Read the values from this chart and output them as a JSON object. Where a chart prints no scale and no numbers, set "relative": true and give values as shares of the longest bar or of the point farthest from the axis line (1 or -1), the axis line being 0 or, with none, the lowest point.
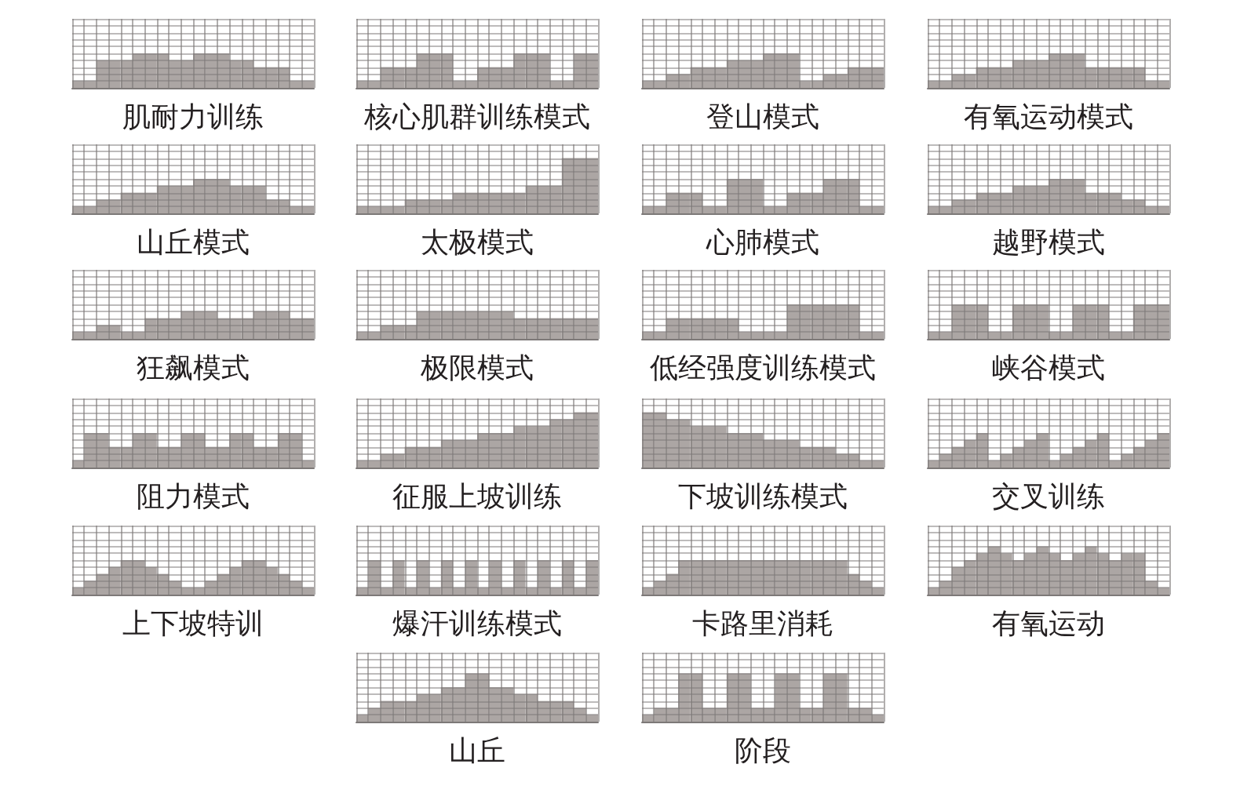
{
  "chart_data": [
    {
      "type": "bar",
      "title": "肌耐力训练",
      "categories": [
        null,
        null,
        null,
        null,
        null,
        null,
        null,
        null,
        null,
        null,
        null,
        null,
        null,
        null,
        null,
        null,
        null,
        null,
        null,
        null
      ],
      "values": [
        0.2,
        0.2,
        0.8,
        0.8,
        0.8,
        1,
        1,
        1,
        0.8,
        0.8,
        1,
        1,
        1,
        0.8,
        0.8,
        0.6,
        0.6,
        0.6,
        0.2,
        0.2
      ],
      "color": "#aca6a4",
      "relative": true,
      "grid": true
    },
    {
      "type": "bar",
      "title": "核心肌群训练模式",
      "categories": [
        null,
        null,
        null,
        null,
        null,
        null,
        null,
        null,
        null,
        null,
        null,
        null,
        null,
        null,
        null,
        null,
        null,
        null,
        null,
        null
      ],
      "values": [
        0.2,
        0.2,
        0.6,
        0.6,
        0.6,
        1,
        1,
        1,
        0.2,
        0.2,
        0.6,
        0.6,
        0.6,
        1,
        1,
        1,
        0.2,
        0.2,
        1,
        1
      ],
      "color": "#aca6a4",
      "relative": true,
      "grid": true
    },
    {
      "type": "bar",
      "title": "登山模式",
      "categories": [
        null,
        null,
        null,
        null,
        null,
        null,
        null,
        null,
        null,
        null,
        null,
        null,
        null,
        null,
        null,
        null,
        null,
        null,
        null,
        null
      ],
      "values": [
        0.2,
        0.2,
        0.4,
        0.4,
        0.6,
        0.6,
        0.6,
        0.8,
        0.8,
        0.8,
        1,
        1,
        1,
        0.2,
        0.2,
        0.4,
        0.4,
        0.6,
        0.6,
        0.6
      ],
      "color": "#aca6a4",
      "relative": true,
      "grid": true
    },
    {
      "type": "bar",
      "title": "有氧运动模式",
      "categories": [
        null,
        null,
        null,
        null,
        null,
        null,
        null,
        null,
        null,
        null,
        null,
        null,
        null,
        null,
        null,
        null,
        null,
        null,
        null,
        null
      ],
      "values": [
        0.2,
        0.2,
        0.4,
        0.4,
        0.6,
        0.6,
        0.6,
        0.8,
        0.8,
        0.8,
        1,
        1,
        1,
        0.6,
        0.6,
        0.6,
        0.6,
        0.6,
        0.2,
        0.2
      ],
      "color": "#aca6a4",
      "relative": true,
      "grid": true
    },
    {
      "type": "bar",
      "title": "山丘模式",
      "categories": [
        null,
        null,
        null,
        null,
        null,
        null,
        null,
        null,
        null,
        null,
        null,
        null,
        null,
        null,
        null,
        null,
        null,
        null,
        null,
        null
      ],
      "values": [
        0.2,
        0.2,
        0.4,
        0.4,
        0.6,
        0.6,
        0.6,
        0.8,
        0.8,
        0.8,
        1,
        1,
        1,
        0.8,
        0.8,
        0.8,
        0.4,
        0.4,
        0.2,
        0.2
      ],
      "color": "#aca6a4",
      "relative": true,
      "grid": true
    },
    {
      "type": "bar",
      "title": "太极模式",
      "categories": [
        null,
        null,
        null,
        null,
        null,
        null,
        null,
        null,
        null,
        null,
        null,
        null,
        null,
        null,
        null,
        null,
        null,
        null,
        null,
        null
      ],
      "values": [
        0.125,
        0.125,
        0.125,
        0.125,
        0.25,
        0.25,
        0.25,
        0.25,
        0.375,
        0.375,
        0.375,
        0.375,
        0.375,
        0.375,
        0.5,
        0.5,
        0.5,
        1,
        1,
        1
      ],
      "color": "#aca6a4",
      "relative": true,
      "grid": true
    },
    {
      "type": "bar",
      "title": "心肺模式",
      "categories": [
        null,
        null,
        null,
        null,
        null,
        null,
        null,
        null,
        null,
        null,
        null,
        null,
        null,
        null,
        null,
        null,
        null,
        null,
        null,
        null
      ],
      "values": [
        0.2,
        0.2,
        0.6,
        0.6,
        0.6,
        0.2,
        0.2,
        1,
        1,
        1,
        0.2,
        0.2,
        0.6,
        0.6,
        0.6,
        1,
        1,
        1,
        0.2,
        0.2
      ],
      "color": "#aca6a4",
      "relative": true,
      "grid": true
    },
    {
      "type": "bar",
      "title": "越野模式",
      "categories": [
        null,
        null,
        null,
        null,
        null,
        null,
        null,
        null,
        null,
        null,
        null,
        null,
        null,
        null,
        null,
        null,
        null,
        null,
        null,
        null
      ],
      "values": [
        0.2,
        0.2,
        0.4,
        0.4,
        0.6,
        0.6,
        0.6,
        0.8,
        0.8,
        0.8,
        1,
        1,
        1,
        0.6,
        0.6,
        0.6,
        0.4,
        0.4,
        0.2,
        0.2
      ],
      "color": "#aca6a4",
      "relative": true,
      "grid": true
    },
    {
      "type": "bar",
      "title": "狂飙模式",
      "categories": [
        null,
        null,
        null,
        null,
        null,
        null,
        null,
        null,
        null,
        null,
        null,
        null,
        null,
        null,
        null,
        null,
        null,
        null,
        null,
        null
      ],
      "values": [
        0.25,
        0.25,
        0.5,
        0.5,
        0.25,
        0.25,
        0.75,
        0.75,
        0.75,
        1,
        1,
        1,
        0.75,
        0.75,
        0.75,
        1,
        1,
        1,
        0.75,
        0.75
      ],
      "color": "#aca6a4",
      "relative": true,
      "grid": true
    },
    {
      "type": "bar",
      "title": "极限模式",
      "categories": [
        null,
        null,
        null,
        null,
        null,
        null,
        null,
        null,
        null,
        null,
        null,
        null,
        null,
        null,
        null,
        null,
        null,
        null,
        null,
        null
      ],
      "values": [
        0.25,
        0.25,
        0.5,
        0.5,
        0.5,
        1,
        1,
        1,
        1,
        1,
        1,
        1,
        1,
        0.75,
        0.75,
        0.75,
        0.75,
        0.75,
        0.75,
        0.75
      ],
      "color": "#aca6a4",
      "relative": true,
      "grid": true
    },
    {
      "type": "bar",
      "title": "低经强度训练模式",
      "categories": [
        null,
        null,
        null,
        null,
        null,
        null,
        null,
        null,
        null,
        null,
        null,
        null,
        null,
        null,
        null,
        null,
        null,
        null,
        null,
        null
      ],
      "values": [
        0.2,
        0.2,
        0.6,
        0.6,
        0.6,
        0.6,
        0.6,
        0.6,
        0.2,
        0.2,
        0.2,
        0.2,
        1,
        1,
        1,
        1,
        1,
        1,
        0.2,
        0.2
      ],
      "color": "#aca6a4",
      "relative": true,
      "grid": true
    },
    {
      "type": "bar",
      "title": "峡谷模式",
      "categories": [
        null,
        null,
        null,
        null,
        null,
        null,
        null,
        null,
        null,
        null,
        null,
        null,
        null,
        null,
        null,
        null,
        null,
        null,
        null,
        null
      ],
      "values": [
        0.2,
        0.2,
        1,
        1,
        1,
        0.2,
        0.2,
        1,
        1,
        1,
        0.2,
        0.2,
        1,
        1,
        1,
        0.2,
        0.2,
        1,
        1,
        1
      ],
      "color": "#aca6a4",
      "relative": true,
      "grid": true
    },
    {
      "type": "bar",
      "title": "阻力模式",
      "categories": [
        null,
        null,
        null,
        null,
        null,
        null,
        null,
        null,
        null,
        null,
        null,
        null,
        null,
        null,
        null,
        null,
        null,
        null,
        null,
        null
      ],
      "values": [
        0.2,
        1,
        1,
        0.6,
        0.6,
        1,
        1,
        0.6,
        0.6,
        1,
        1,
        0.6,
        0.6,
        1,
        1,
        0.6,
        0.6,
        1,
        1,
        0.2
      ],
      "color": "#aca6a4",
      "relative": true,
      "grid": true
    },
    {
      "type": "bar",
      "title": "征服上坡训练",
      "categories": [
        null,
        null,
        null,
        null,
        null,
        null,
        null,
        null,
        null,
        null,
        null,
        null,
        null,
        null,
        null,
        null,
        null,
        null,
        null,
        null
      ],
      "values": [
        0.125,
        0.125,
        0.25,
        0.25,
        0.375,
        0.375,
        0.375,
        0.5,
        0.5,
        0.5,
        0.625,
        0.625,
        0.625,
        0.75,
        0.75,
        0.75,
        0.875,
        0.875,
        1,
        1
      ],
      "color": "#aca6a4",
      "relative": true,
      "grid": true
    },
    {
      "type": "bar",
      "title": "下坡训练模式",
      "categories": [
        null,
        null,
        null,
        null,
        null,
        null,
        null,
        null,
        null,
        null,
        null,
        null,
        null,
        null,
        null,
        null,
        null,
        null,
        null,
        null
      ],
      "values": [
        1,
        1,
        0.875,
        0.875,
        0.75,
        0.75,
        0.75,
        0.625,
        0.625,
        0.625,
        0.5,
        0.5,
        0.5,
        0.375,
        0.375,
        0.375,
        0.25,
        0.25,
        0.125,
        0.125
      ],
      "color": "#aca6a4",
      "relative": true,
      "grid": true
    },
    {
      "type": "bar",
      "title": "交叉训练",
      "categories": [
        null,
        null,
        null,
        null,
        null,
        null,
        null,
        null,
        null,
        null,
        null,
        null,
        null,
        null,
        null,
        null,
        null,
        null,
        null,
        null
      ],
      "values": [
        0.2,
        0.4,
        0.6,
        0.8,
        1,
        0.2,
        0.4,
        0.6,
        0.8,
        1,
        0.2,
        0.4,
        0.6,
        0.8,
        1,
        0.2,
        0.4,
        0.6,
        0.8,
        1
      ],
      "color": "#aca6a4",
      "relative": true,
      "grid": true
    },
    {
      "type": "bar",
      "title": "上下坡特训",
      "categories": [
        null,
        null,
        null,
        null,
        null,
        null,
        null,
        null,
        null,
        null,
        null,
        null,
        null,
        null,
        null,
        null,
        null,
        null,
        null,
        null
      ],
      "values": [
        0.2,
        0.4,
        0.6,
        0.8,
        1,
        1,
        0.8,
        0.6,
        0.4,
        0.2,
        0.2,
        0.4,
        0.6,
        0.8,
        1,
        1,
        0.8,
        0.6,
        0.4,
        0.2
      ],
      "color": "#aca6a4",
      "relative": true,
      "grid": true
    },
    {
      "type": "bar",
      "title": "爆汗训练模式",
      "categories": [
        null,
        null,
        null,
        null,
        null,
        null,
        null,
        null,
        null,
        null,
        null,
        null,
        null,
        null,
        null,
        null,
        null,
        null,
        null,
        null
      ],
      "values": [
        0.2,
        1,
        0.2,
        1,
        0.2,
        1,
        0.2,
        1,
        0.2,
        1,
        0.2,
        1,
        0.2,
        1,
        0.2,
        1,
        0.2,
        1,
        0.2,
        1
      ],
      "color": "#aca6a4",
      "relative": true,
      "grid": true
    },
    {
      "type": "bar",
      "title": "卡路里消耗",
      "categories": [
        null,
        null,
        null,
        null,
        null,
        null,
        null,
        null,
        null,
        null,
        null,
        null,
        null,
        null,
        null,
        null,
        null,
        null,
        null,
        null
      ],
      "values": [
        0.2,
        0.4,
        0.6,
        1,
        1,
        1,
        1,
        1,
        1,
        1,
        1,
        1,
        1,
        1,
        1,
        1,
        1,
        0.6,
        0.4,
        0.2
      ],
      "color": "#aca6a4",
      "relative": true,
      "grid": true
    },
    {
      "type": "bar",
      "title": "有氧运动",
      "categories": [
        null,
        null,
        null,
        null,
        null,
        null,
        null,
        null,
        null,
        null,
        null,
        null,
        null,
        null,
        null,
        null,
        null,
        null,
        null,
        null
      ],
      "values": [
        0.143,
        0.286,
        0.571,
        0.714,
        0.857,
        1,
        0.857,
        0.714,
        0.857,
        1,
        0.857,
        0.714,
        0.857,
        1,
        0.857,
        0.714,
        0.857,
        0.857,
        0.286,
        0.143
      ],
      "color": "#aca6a4",
      "relative": true,
      "grid": true
    },
    {
      "type": "bar",
      "title": "山丘",
      "categories": [
        null,
        null,
        null,
        null,
        null,
        null,
        null,
        null,
        null,
        null,
        null,
        null,
        null,
        null,
        null,
        null,
        null,
        null,
        null,
        null
      ],
      "values": [
        0.143,
        0.286,
        0.429,
        0.429,
        0.429,
        0.571,
        0.571,
        0.714,
        0.714,
        1,
        1,
        0.714,
        0.714,
        0.571,
        0.571,
        0.429,
        0.429,
        0.429,
        0.286,
        0.143
      ],
      "color": "#aca6a4",
      "relative": true,
      "grid": true
    },
    {
      "type": "bar",
      "title": "阶段",
      "categories": [
        null,
        null,
        null,
        null,
        null,
        null,
        null,
        null,
        null,
        null,
        null,
        null,
        null,
        null,
        null,
        null,
        null,
        null,
        null,
        null
      ],
      "values": [
        0.143,
        0.286,
        0.286,
        1,
        1,
        0.286,
        0.286,
        1,
        1,
        0.286,
        0.286,
        1,
        1,
        0.286,
        0.286,
        1,
        1,
        0.286,
        0.286,
        0.143
      ],
      "color": "#aca6a4",
      "relative": true,
      "grid": true
    }
  ]
}
